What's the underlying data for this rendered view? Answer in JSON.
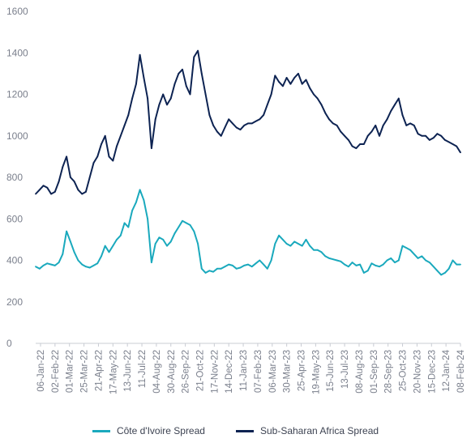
{
  "chart_data": {
    "type": "line",
    "title": "",
    "xlabel": "",
    "ylabel": "",
    "ylim": [
      0,
      1600
    ],
    "yticks": [
      0,
      200,
      400,
      600,
      800,
      1000,
      1200,
      1400,
      1600
    ],
    "grid": false,
    "legend_position": "bottom",
    "x_tick_labels": [
      "06-Jan-22",
      "02-Feb-22",
      "01-Mar-22",
      "25-Mar-22",
      "21-Apr-22",
      "17-May-22",
      "13-Jun-22",
      "11-Jul-22",
      "04-Aug-22",
      "30-Aug-22",
      "26-Sep-22",
      "21-Oct-22",
      "17-Nov-22",
      "14-Dec-22",
      "11-Jan-23",
      "07-Feb-23",
      "06-Mar-23",
      "30-Mar-23",
      "25-Apr-23",
      "19-May-23",
      "15-Jun-23",
      "13-Jul-23",
      "08-Aug-23",
      "01-Sep-23",
      "28-Sep-23",
      "25-Oct-23",
      "20-Nov-23",
      "15-Dec-23",
      "12-Jan-24",
      "08-Feb-24"
    ],
    "x": [
      "06-Jan-22",
      "13-Jan-22",
      "20-Jan-22",
      "27-Jan-22",
      "02-Feb-22",
      "09-Feb-22",
      "16-Feb-22",
      "23-Feb-22",
      "01-Mar-22",
      "08-Mar-22",
      "15-Mar-22",
      "25-Mar-22",
      "01-Apr-22",
      "08-Apr-22",
      "14-Apr-22",
      "21-Apr-22",
      "28-Apr-22",
      "05-May-22",
      "12-May-22",
      "17-May-22",
      "24-May-22",
      "01-Jun-22",
      "08-Jun-22",
      "13-Jun-22",
      "20-Jun-22",
      "27-Jun-22",
      "04-Jul-22",
      "11-Jul-22",
      "18-Jul-22",
      "25-Jul-22",
      "04-Aug-22",
      "11-Aug-22",
      "18-Aug-22",
      "25-Aug-22",
      "30-Aug-22",
      "06-Sep-22",
      "13-Sep-22",
      "20-Sep-22",
      "26-Sep-22",
      "03-Oct-22",
      "10-Oct-22",
      "14-Oct-22",
      "21-Oct-22",
      "28-Oct-22",
      "04-Nov-22",
      "11-Nov-22",
      "17-Nov-22",
      "24-Nov-22",
      "01-Dec-22",
      "08-Dec-22",
      "14-Dec-22",
      "21-Dec-22",
      "28-Dec-22",
      "04-Jan-23",
      "11-Jan-23",
      "18-Jan-23",
      "25-Jan-23",
      "01-Feb-23",
      "07-Feb-23",
      "14-Feb-23",
      "21-Feb-23",
      "28-Feb-23",
      "06-Mar-23",
      "13-Mar-23",
      "20-Mar-23",
      "30-Mar-23",
      "06-Apr-23",
      "13-Apr-23",
      "20-Apr-23",
      "25-Apr-23",
      "02-May-23",
      "09-May-23",
      "19-May-23",
      "26-May-23",
      "02-Jun-23",
      "09-Jun-23",
      "15-Jun-23",
      "22-Jun-23",
      "29-Jun-23",
      "06-Jul-23",
      "13-Jul-23",
      "20-Jul-23",
      "27-Jul-23",
      "03-Aug-23",
      "08-Aug-23",
      "15-Aug-23",
      "22-Aug-23",
      "01-Sep-23",
      "08-Sep-23",
      "15-Sep-23",
      "22-Sep-23",
      "28-Sep-23",
      "05-Oct-23",
      "12-Oct-23",
      "18-Oct-23",
      "25-Oct-23",
      "01-Nov-23",
      "08-Nov-23",
      "15-Nov-23",
      "20-Nov-23",
      "27-Nov-23",
      "04-Dec-23",
      "11-Dec-23",
      "15-Dec-23",
      "22-Dec-23",
      "05-Jan-24",
      "12-Jan-24",
      "19-Jan-24",
      "26-Jan-24",
      "02-Feb-24",
      "08-Feb-24"
    ],
    "series": [
      {
        "name": "Côte d'Ivoire Spread",
        "color": "#1aa9bd",
        "values": [
          370,
          360,
          375,
          385,
          380,
          375,
          390,
          430,
          540,
          490,
          440,
          400,
          380,
          370,
          365,
          375,
          385,
          420,
          470,
          440,
          470,
          500,
          520,
          580,
          560,
          640,
          680,
          740,
          690,
          600,
          390,
          480,
          510,
          500,
          470,
          490,
          530,
          560,
          590,
          580,
          570,
          540,
          480,
          360,
          340,
          350,
          345,
          360,
          360,
          370,
          380,
          375,
          360,
          365,
          375,
          380,
          370,
          385,
          400,
          380,
          360,
          400,
          480,
          520,
          500,
          480,
          470,
          490,
          480,
          470,
          500,
          470,
          450,
          450,
          440,
          420,
          410,
          405,
          400,
          395,
          380,
          370,
          390,
          375,
          380,
          340,
          350,
          385,
          375,
          370,
          380,
          400,
          410,
          390,
          400,
          470,
          460,
          450,
          430,
          410,
          420,
          400,
          390,
          370,
          350,
          330,
          340,
          360,
          400,
          380,
          380
        ]
      },
      {
        "name": "Sub-Saharan Africa Spread",
        "color": "#0d2352",
        "values": [
          720,
          740,
          760,
          750,
          720,
          730,
          780,
          850,
          900,
          800,
          780,
          740,
          720,
          730,
          800,
          870,
          900,
          960,
          1000,
          900,
          880,
          950,
          1000,
          1050,
          1100,
          1180,
          1250,
          1390,
          1280,
          1180,
          940,
          1080,
          1150,
          1200,
          1150,
          1180,
          1250,
          1300,
          1320,
          1240,
          1200,
          1380,
          1410,
          1300,
          1200,
          1100,
          1050,
          1020,
          1000,
          1040,
          1080,
          1060,
          1040,
          1030,
          1050,
          1060,
          1060,
          1070,
          1080,
          1100,
          1150,
          1200,
          1290,
          1260,
          1240,
          1280,
          1250,
          1280,
          1300,
          1250,
          1270,
          1230,
          1200,
          1180,
          1150,
          1110,
          1080,
          1060,
          1050,
          1020,
          1000,
          980,
          950,
          940,
          960,
          960,
          1000,
          1020,
          1050,
          1000,
          1050,
          1080,
          1120,
          1150,
          1180,
          1100,
          1050,
          1060,
          1050,
          1010,
          1000,
          1000,
          980,
          990,
          1010,
          1000,
          980,
          970,
          960,
          950,
          920
        ]
      }
    ]
  },
  "legend": {
    "items": [
      {
        "label": "Côte d'Ivoire Spread",
        "color": "#1aa9bd"
      },
      {
        "label": "Sub-Saharan Africa Spread",
        "color": "#0d2352"
      }
    ]
  }
}
